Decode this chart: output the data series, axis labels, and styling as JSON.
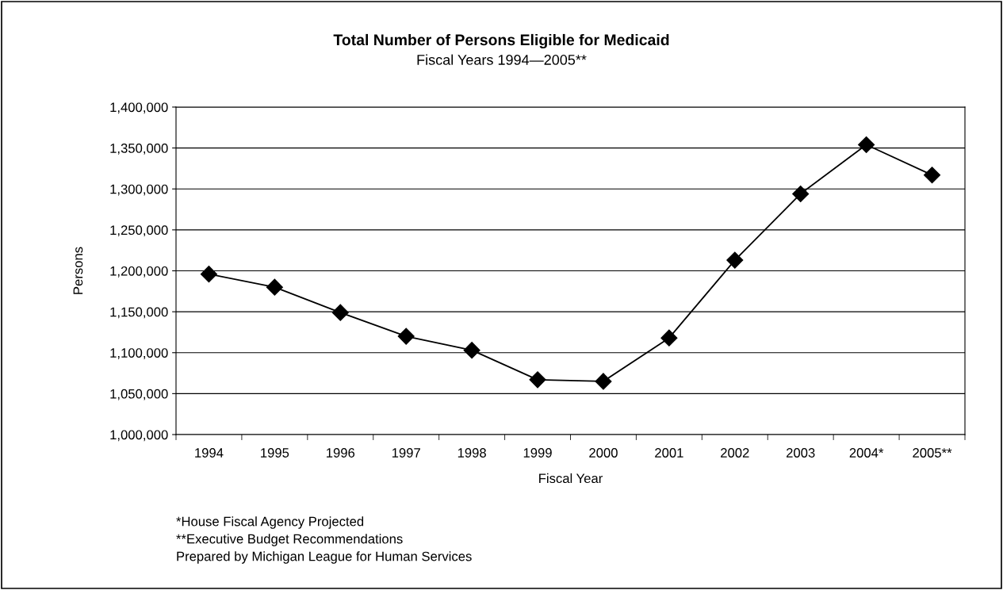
{
  "chart_data": {
    "type": "line",
    "title": "Total Number of Persons Eligible for Medicaid",
    "subtitle": "Fiscal Years 1994—2005**",
    "xlabel": "Fiscal Year",
    "ylabel": "Persons",
    "categories": [
      "1994",
      "1995",
      "1996",
      "1997",
      "1998",
      "1999",
      "2000",
      "2001",
      "2002",
      "2003",
      "2004*",
      "2005**"
    ],
    "series": [
      {
        "color": "#000000",
        "values": [
          1196000,
          1180000,
          1149000,
          1120000,
          1103000,
          1067000,
          1065000,
          1118000,
          1213000,
          1294000,
          1354000,
          1317000
        ]
      }
    ],
    "ylim": [
      1000000,
      1400000
    ],
    "yticks": [
      {
        "value": 1000000,
        "label": "1,000,000"
      },
      {
        "value": 1050000,
        "label": "1,050,000"
      },
      {
        "value": 1100000,
        "label": "1,100,000"
      },
      {
        "value": 1150000,
        "label": "1,150,000"
      },
      {
        "value": 1200000,
        "label": "1,200,000"
      },
      {
        "value": 1250000,
        "label": "1,250,000"
      },
      {
        "value": 1300000,
        "label": "1,300,000"
      },
      {
        "value": 1350000,
        "label": "1,350,000"
      },
      {
        "value": 1400000,
        "label": "1,400,000"
      }
    ],
    "grid": "y",
    "marker": "diamond",
    "line_style": "solid",
    "annotations": [
      "*House Fiscal Agency Projected",
      "**Executive Budget Recommendations",
      "Prepared by Michigan League for Human Services"
    ]
  }
}
